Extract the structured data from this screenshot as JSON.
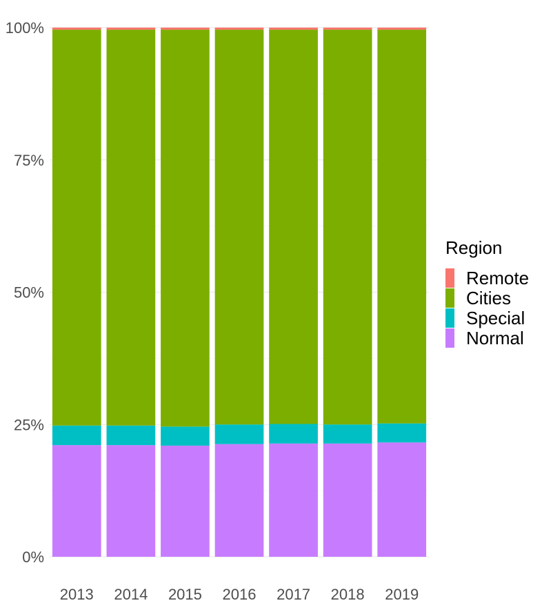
{
  "chart_data": {
    "type": "bar",
    "stacked": true,
    "normalized": true,
    "categories": [
      "2013",
      "2014",
      "2015",
      "2016",
      "2017",
      "2018",
      "2019"
    ],
    "series": [
      {
        "name": "Normal",
        "color": "#C77CFF",
        "values": [
          21.1,
          21.1,
          21.0,
          21.3,
          21.4,
          21.4,
          21.6
        ]
      },
      {
        "name": "Special",
        "color": "#00BFC4",
        "values": [
          3.7,
          3.7,
          3.6,
          3.7,
          3.7,
          3.6,
          3.6
        ]
      },
      {
        "name": "Cities",
        "color": "#7CAE00",
        "values": [
          74.8,
          74.8,
          75.0,
          74.6,
          74.5,
          74.6,
          74.4
        ]
      },
      {
        "name": "Remote",
        "color": "#F8766D",
        "values": [
          0.4,
          0.4,
          0.4,
          0.4,
          0.4,
          0.4,
          0.4
        ]
      }
    ],
    "ylim": [
      0,
      100
    ],
    "yticks": [
      0,
      25,
      50,
      75,
      100
    ],
    "ytick_labels": [
      "0%",
      "25%",
      "50%",
      "75%",
      "100%"
    ],
    "xlabel": "",
    "ylabel": "",
    "grid": true,
    "legend": {
      "title": "Region",
      "placement": "right",
      "order": [
        "Remote",
        "Cities",
        "Special",
        "Normal"
      ]
    }
  }
}
